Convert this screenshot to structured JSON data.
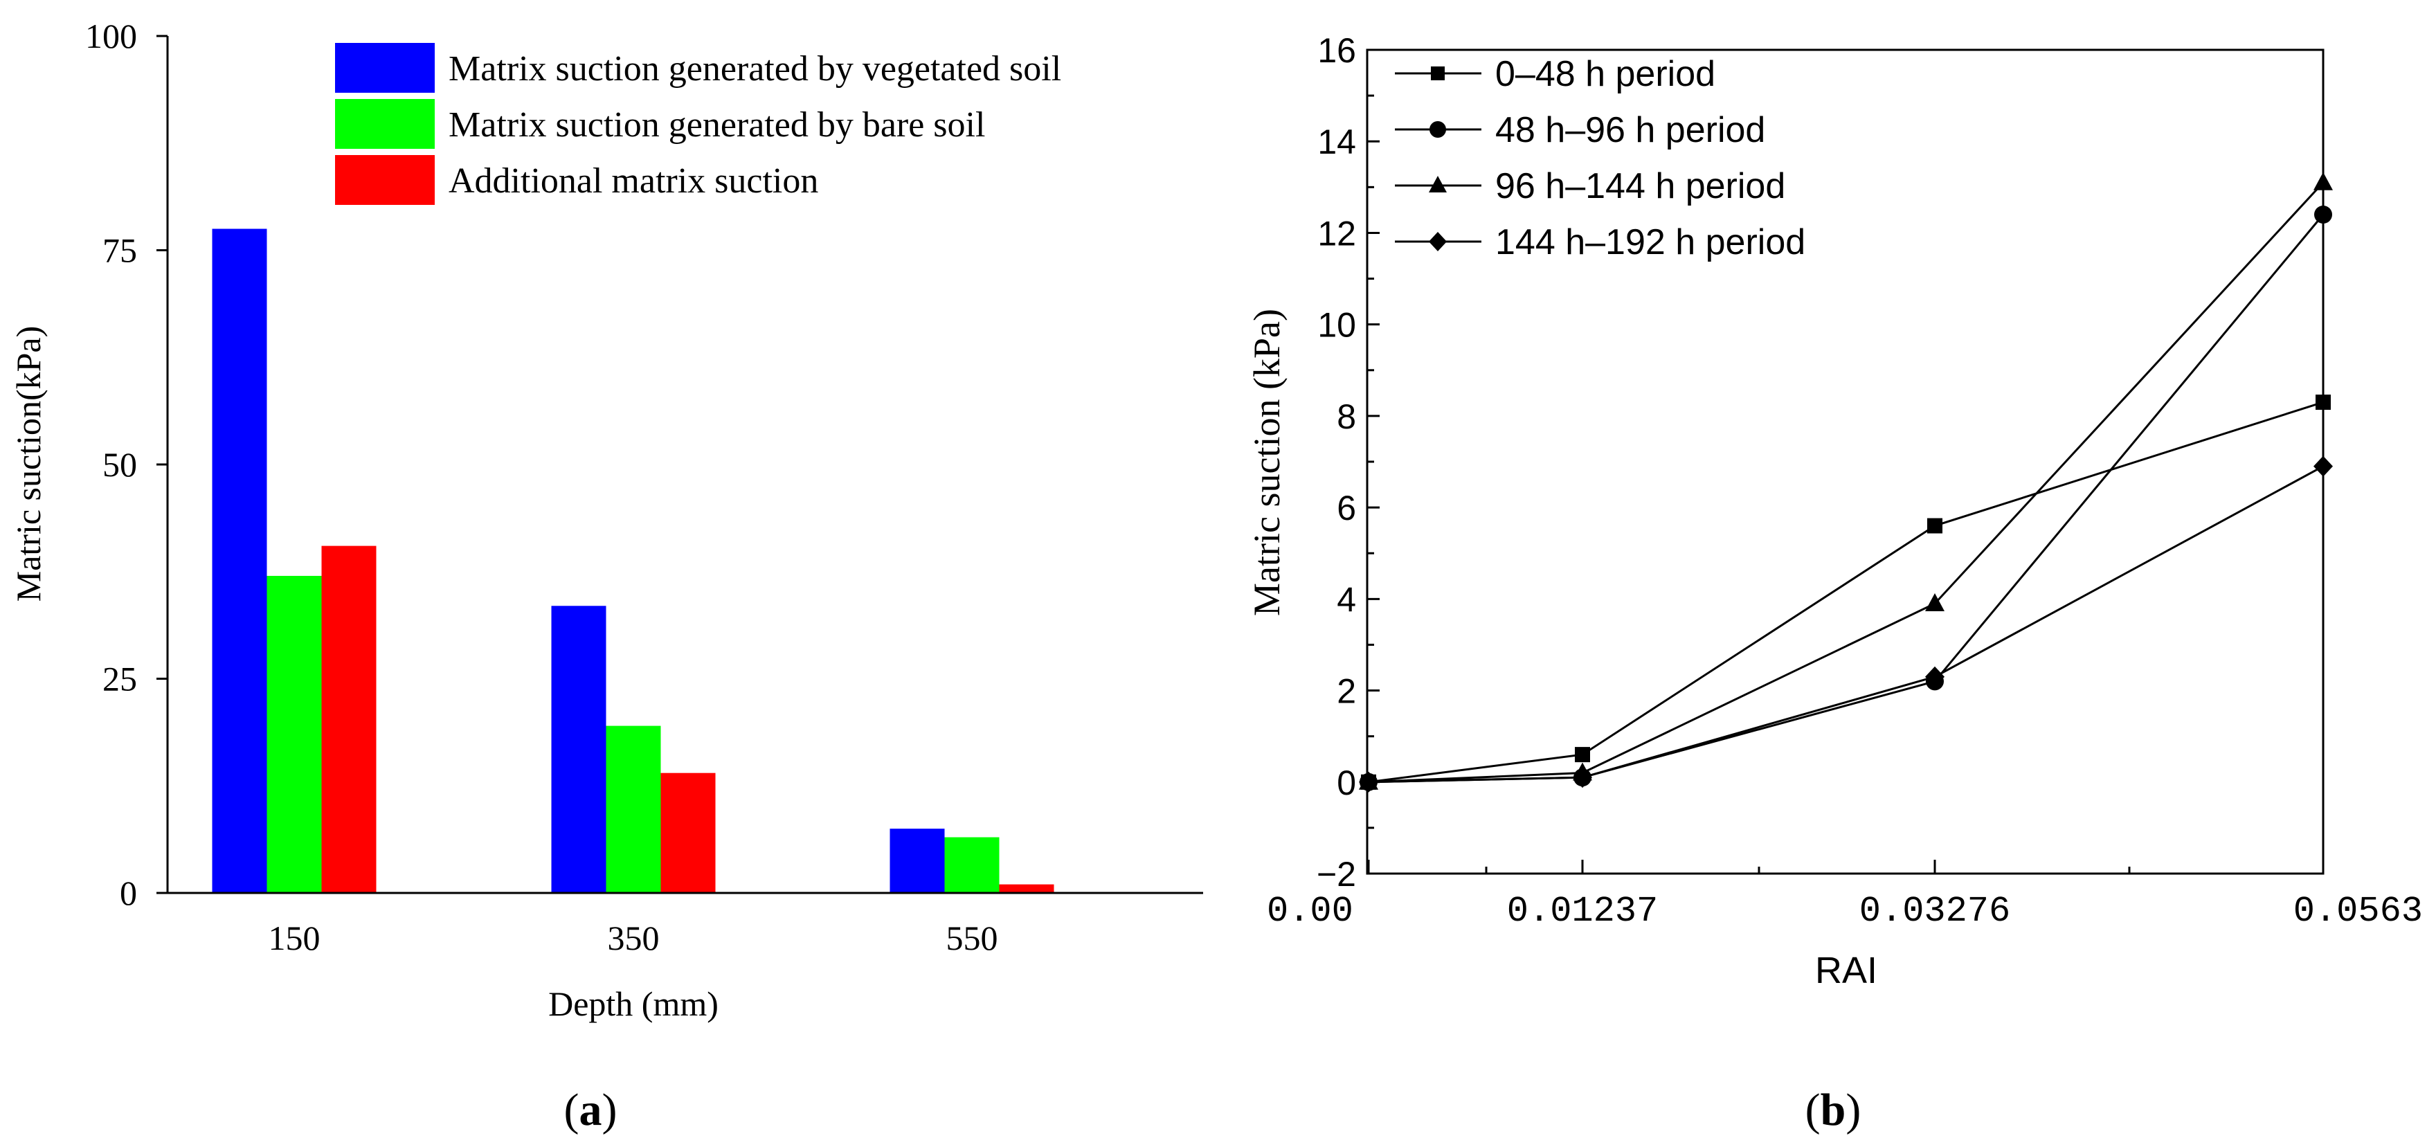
{
  "chart_data": [
    {
      "type": "bar",
      "panel_label": "a",
      "title": "",
      "xlabel": "Depth (mm)",
      "ylabel": "Matric suction(kPa)",
      "ylim": [
        0,
        100
      ],
      "yticks": [
        0,
        25,
        50,
        75,
        100
      ],
      "categories": [
        "150",
        "350",
        "550"
      ],
      "legend_position": "top-right",
      "series": [
        {
          "name": "Matrix suction generated by vegetated soil",
          "color": "#0000ff",
          "values": [
            77.5,
            33.5,
            7.5
          ]
        },
        {
          "name": "Matrix suction generated by bare soil",
          "color": "#00ff00",
          "values": [
            37.0,
            19.5,
            6.5
          ]
        },
        {
          "name": "Additional matrix suction",
          "color": "#ff0000",
          "values": [
            40.5,
            14.0,
            1.0
          ]
        }
      ]
    },
    {
      "type": "line",
      "panel_label": "b",
      "title": "",
      "xlabel": "RAI",
      "ylabel": "Matric suction (kPa)",
      "ylim": [
        -2,
        16
      ],
      "yticks": [
        -2,
        0,
        2,
        4,
        6,
        8,
        10,
        12,
        14,
        16
      ],
      "ytick_labels": [
        "−2",
        "0",
        "2",
        "4",
        "6",
        "8",
        "10",
        "12",
        "14",
        "16"
      ],
      "x": [
        0.0,
        0.01237,
        0.03276,
        0.0563
      ],
      "xtick_labels": [
        "0.00",
        "0.01237",
        "0.03276",
        "0.0563"
      ],
      "legend_position": "top-left",
      "series": [
        {
          "name": "0–48 h period",
          "marker": "square",
          "values": [
            0,
            0.6,
            5.6,
            8.3
          ]
        },
        {
          "name": "48 h–96 h period",
          "marker": "circle",
          "values": [
            0,
            0.1,
            2.2,
            12.4
          ]
        },
        {
          "name": "96 h–144 h period",
          "marker": "triangle",
          "values": [
            0,
            0.2,
            3.9,
            13.1
          ]
        },
        {
          "name": "144 h–192 h period",
          "marker": "diamond",
          "values": [
            0,
            0.1,
            2.3,
            6.9
          ]
        }
      ]
    }
  ]
}
